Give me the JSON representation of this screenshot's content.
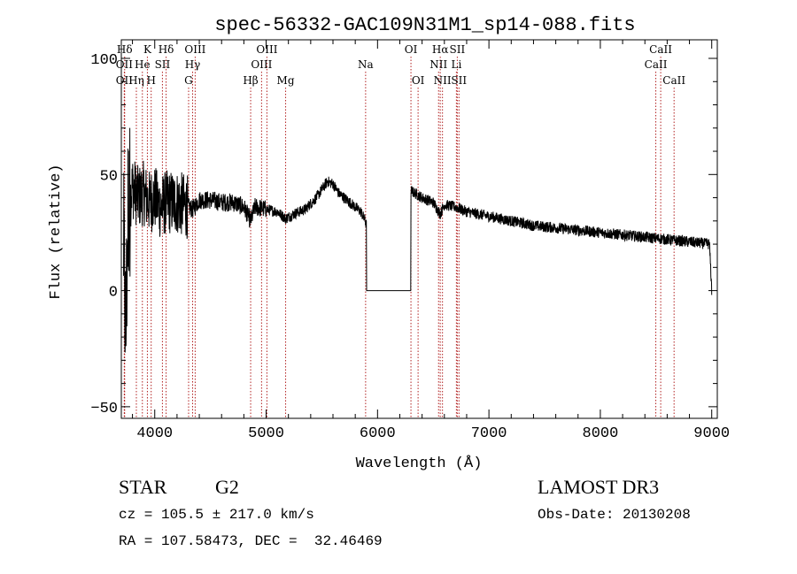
{
  "chart_data": {
    "type": "line",
    "title": "spec-56332-GAC109N31M1_sp14-088.fits",
    "xlabel": "Wavelength (Å)",
    "ylabel": "Flux (relative)",
    "xlim": [
      3700,
      9050
    ],
    "ylim": [
      -55,
      108
    ],
    "xticks": [
      4000,
      5000,
      6000,
      7000,
      8000,
      9000
    ],
    "yticks": [
      -50,
      0,
      50,
      100
    ],
    "gap": {
      "start": 5900,
      "end": 6300,
      "flux": 0
    },
    "line_color": "#000000",
    "marker_color": "#b22222",
    "spectrum_anchors": [
      {
        "x": 3720,
        "y": 20
      },
      {
        "x": 3740,
        "y": -20
      },
      {
        "x": 3760,
        "y": 35
      },
      {
        "x": 3800,
        "y": 45
      },
      {
        "x": 3850,
        "y": 40
      },
      {
        "x": 3900,
        "y": 42
      },
      {
        "x": 3950,
        "y": 38
      },
      {
        "x": 4000,
        "y": 40
      },
      {
        "x": 4050,
        "y": 36
      },
      {
        "x": 4100,
        "y": 38
      },
      {
        "x": 4200,
        "y": 38
      },
      {
        "x": 4300,
        "y": 36
      },
      {
        "x": 4340,
        "y": 35
      },
      {
        "x": 4400,
        "y": 39
      },
      {
        "x": 4500,
        "y": 39
      },
      {
        "x": 4600,
        "y": 38
      },
      {
        "x": 4700,
        "y": 38
      },
      {
        "x": 4800,
        "y": 36
      },
      {
        "x": 4861,
        "y": 30
      },
      {
        "x": 4900,
        "y": 36
      },
      {
        "x": 5000,
        "y": 35
      },
      {
        "x": 5100,
        "y": 34
      },
      {
        "x": 5175,
        "y": 31
      },
      {
        "x": 5250,
        "y": 33
      },
      {
        "x": 5350,
        "y": 35
      },
      {
        "x": 5450,
        "y": 40
      },
      {
        "x": 5550,
        "y": 47
      },
      {
        "x": 5600,
        "y": 46
      },
      {
        "x": 5650,
        "y": 42
      },
      {
        "x": 5750,
        "y": 38
      },
      {
        "x": 5850,
        "y": 34
      },
      {
        "x": 5890,
        "y": 30
      },
      {
        "x": 5900,
        "y": 28
      },
      {
        "x": 6300,
        "y": 43
      },
      {
        "x": 6400,
        "y": 40
      },
      {
        "x": 6500,
        "y": 38
      },
      {
        "x": 6563,
        "y": 33
      },
      {
        "x": 6600,
        "y": 37
      },
      {
        "x": 6700,
        "y": 36
      },
      {
        "x": 6800,
        "y": 34
      },
      {
        "x": 7000,
        "y": 32
      },
      {
        "x": 7200,
        "y": 30
      },
      {
        "x": 7400,
        "y": 28
      },
      {
        "x": 7600,
        "y": 27
      },
      {
        "x": 7800,
        "y": 26
      },
      {
        "x": 8000,
        "y": 25
      },
      {
        "x": 8200,
        "y": 24
      },
      {
        "x": 8400,
        "y": 23
      },
      {
        "x": 8600,
        "y": 22
      },
      {
        "x": 8800,
        "y": 21
      },
      {
        "x": 8980,
        "y": 20
      },
      {
        "x": 9000,
        "y": 0
      }
    ],
    "line_markers": [
      {
        "name": "Hδ",
        "x": 3730,
        "row": 0
      },
      {
        "name": "OII",
        "x": 3727,
        "row": 1
      },
      {
        "name": "OII",
        "x": 3727,
        "row": 2
      },
      {
        "name": "K",
        "x": 3934,
        "row": 0
      },
      {
        "name": "He",
        "x": 3889,
        "row": 1
      },
      {
        "name": "Hη",
        "x": 3835,
        "row": 2
      },
      {
        "name": "H",
        "x": 3968,
        "row": 2
      },
      {
        "name": "SII",
        "x": 4069,
        "row": 1
      },
      {
        "name": "Hδ",
        "x": 4102,
        "row": 0
      },
      {
        "name": "OIII",
        "x": 4363,
        "row": 0
      },
      {
        "name": "Hγ",
        "x": 4340,
        "row": 1
      },
      {
        "name": "G",
        "x": 4304,
        "row": 2
      },
      {
        "name": "OIII",
        "x": 5007,
        "row": 0
      },
      {
        "name": "OIII",
        "x": 4959,
        "row": 1
      },
      {
        "name": "Hβ",
        "x": 4861,
        "row": 2
      },
      {
        "name": "Mg",
        "x": 5175,
        "row": 2
      },
      {
        "name": "Na",
        "x": 5893,
        "row": 1
      },
      {
        "name": "OI",
        "x": 6300,
        "row": 0
      },
      {
        "name": "OI",
        "x": 6364,
        "row": 2
      },
      {
        "name": "Hα",
        "x": 6563,
        "row": 0
      },
      {
        "name": "NII",
        "x": 6548,
        "row": 1
      },
      {
        "name": "NII",
        "x": 6583,
        "row": 2
      },
      {
        "name": "SII",
        "x": 6716,
        "row": 0
      },
      {
        "name": "Li",
        "x": 6708,
        "row": 1
      },
      {
        "name": "SII",
        "x": 6731,
        "row": 2
      },
      {
        "name": "CaII",
        "x": 8542,
        "row": 0
      },
      {
        "name": "CaII",
        "x": 8498,
        "row": 1
      },
      {
        "name": "CaII",
        "x": 8662,
        "row": 2
      }
    ]
  },
  "info": {
    "object_class": "STAR",
    "subclass": "G2",
    "survey": "LAMOST DR3",
    "cz": "cz = 105.5 ± 217.0 km/s",
    "obs_date": "Obs-Date: 20130208",
    "coords": "RA = 107.58473, DEC =  32.46469"
  }
}
